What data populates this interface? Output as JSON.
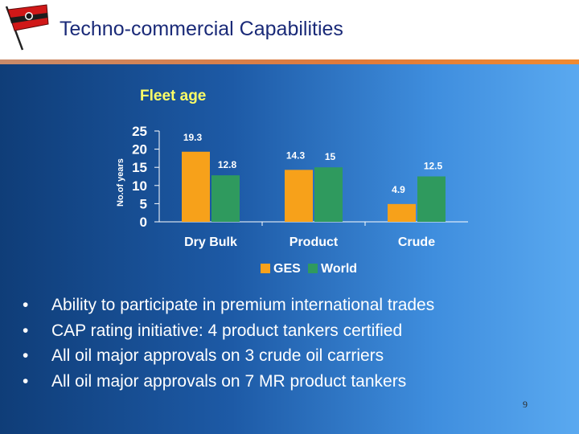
{
  "header": {
    "title": "Techno-commercial Capabilities",
    "logo_icon": "flag-logo-icon",
    "rule_color": "#e07a3a"
  },
  "chart_data": {
    "type": "bar",
    "title": "Fleet age",
    "ylabel": "No.of years",
    "xlabel": "",
    "categories": [
      "Dry Bulk",
      "Product",
      "Crude"
    ],
    "ylim": [
      0,
      25
    ],
    "yticks": [
      0,
      5,
      10,
      15,
      20,
      25
    ],
    "grid": false,
    "legend_position": "bottom",
    "series": [
      {
        "name": "GES",
        "values": [
          19.3,
          14.3,
          4.9
        ],
        "color": "#f7a11a"
      },
      {
        "name": "World",
        "values": [
          12.8,
          15,
          12.5
        ],
        "color": "#2f9a5e"
      }
    ]
  },
  "bullets": [
    "Ability to participate in premium international trades",
    "CAP rating initiative: 4 product tankers certified",
    "All oil major approvals on 3 crude oil carriers",
    "All oil major approvals on 7 MR product tankers"
  ],
  "bullet_symbol": "•",
  "page_number": "9"
}
